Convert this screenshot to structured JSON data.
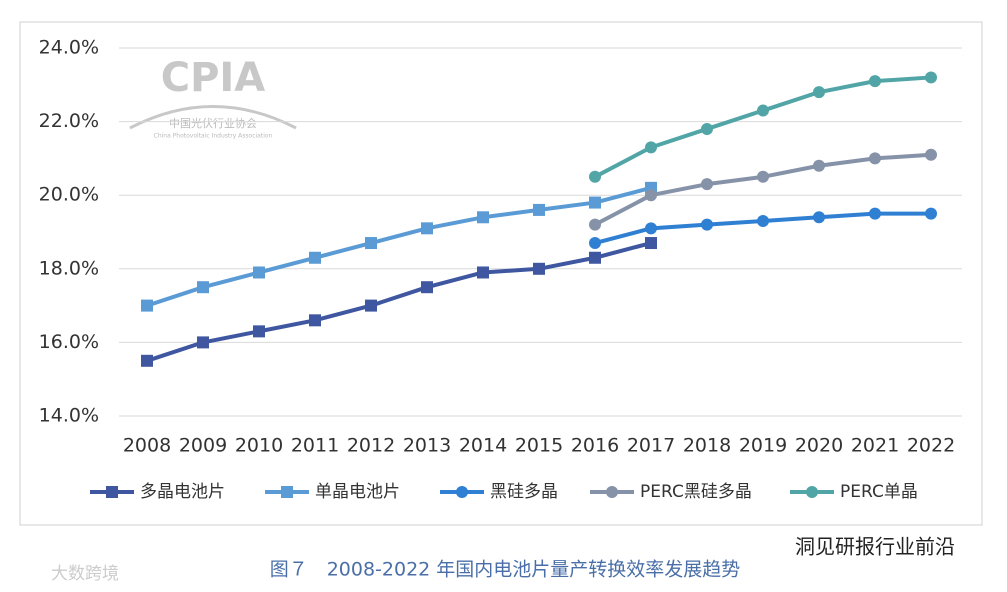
{
  "chart_data": {
    "type": "line",
    "categories": [
      "2008",
      "2009",
      "2010",
      "2011",
      "2012",
      "2013",
      "2014",
      "2015",
      "2016",
      "2017",
      "2018",
      "2019",
      "2020",
      "2021",
      "2022"
    ],
    "series": [
      {
        "name": "多晶电池片",
        "color": "#3f57a0",
        "marker": "square",
        "values": [
          15.5,
          16.0,
          16.3,
          16.6,
          17.0,
          17.5,
          17.9,
          18.0,
          18.3,
          18.7,
          null,
          null,
          null,
          null,
          null
        ]
      },
      {
        "name": "单晶电池片",
        "color": "#5b9bd5",
        "marker": "square",
        "values": [
          17.0,
          17.5,
          17.9,
          18.3,
          18.7,
          19.1,
          19.4,
          19.6,
          19.8,
          20.2,
          null,
          null,
          null,
          null,
          null
        ]
      },
      {
        "name": "黑硅多晶",
        "color": "#2f7fd3",
        "marker": "circle",
        "values": [
          null,
          null,
          null,
          null,
          null,
          null,
          null,
          null,
          18.7,
          19.1,
          19.2,
          19.3,
          19.4,
          19.5,
          19.5
        ]
      },
      {
        "name": "PERC黑硅多晶",
        "color": "#8592a8",
        "marker": "circle",
        "values": [
          null,
          null,
          null,
          null,
          null,
          null,
          null,
          null,
          19.2,
          20.0,
          20.3,
          20.5,
          20.8,
          21.0,
          21.1
        ]
      },
      {
        "name": "PERC单晶",
        "color": "#52a5a6",
        "marker": "circle",
        "values": [
          null,
          null,
          null,
          null,
          null,
          null,
          null,
          null,
          20.5,
          21.3,
          21.8,
          22.3,
          22.8,
          23.1,
          23.2
        ]
      }
    ],
    "ylim": [
      14,
      24
    ],
    "yticks": [
      {
        "value": 14,
        "label": "14.0%"
      },
      {
        "value": 16,
        "label": "16.0%"
      },
      {
        "value": 18,
        "label": "18.0%"
      },
      {
        "value": 20,
        "label": "20.0%"
      },
      {
        "value": 22,
        "label": "22.0%"
      },
      {
        "value": 24,
        "label": "24.0%"
      }
    ],
    "grid": true,
    "legend": "bottom"
  },
  "caption": "图７　2008-2022 年国内电池片量产转换效率发展趋势",
  "watermarks": {
    "logo": "CPIA",
    "logo_cn": "中国光伏行业协会",
    "logo_en": "China Photovoltaic Industry Association",
    "right": "洞见研报行业前沿",
    "left": "大数跨境"
  }
}
